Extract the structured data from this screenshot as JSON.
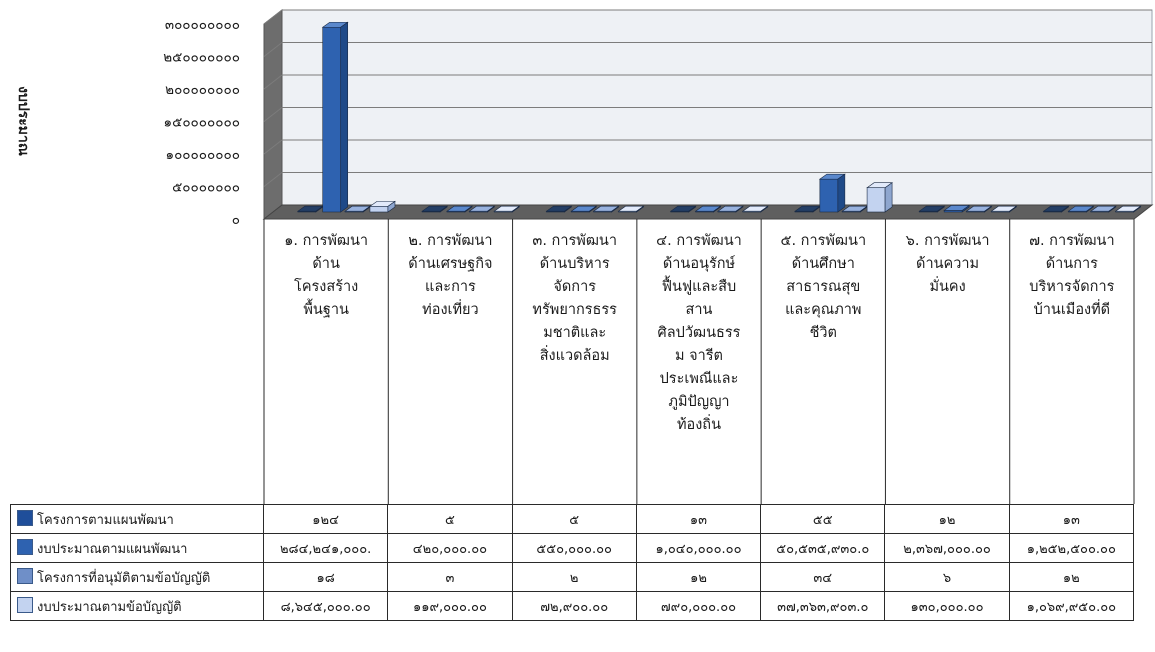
{
  "chart_data": {
    "type": "bar",
    "ylabel": "งบประมาณ",
    "ylim": [
      0,
      300000000
    ],
    "y_ticks": [
      "๐",
      "๕๐๐๐๐๐๐๐",
      "๑๐๐๐๐๐๐๐๐",
      "๑๕๐๐๐๐๐๐๐",
      "๒๐๐๐๐๐๐๐๐",
      "๒๕๐๐๐๐๐๐๐",
      "๓๐๐๐๐๐๐๐๐"
    ],
    "categories": [
      "๑. การพัฒนาด้านโครงสร้างพื้นฐาน",
      "๒. การพัฒนาด้านเศรษฐกิจและการท่องเที่ยว",
      "๓. การพัฒนาด้านบริหารจัดการทรัพยากรธรรมชาติและสิ่งแวดล้อม",
      "๔. การพัฒนาด้านอนุรักษ์ฟื้นฟูและสืบสานศิลปวัฒนธรรม จารีตประเพณีและภูมิปัญญาท้องถิ่น",
      "๕. การพัฒนาด้านศึกษาสาธารณสุขและคุณภาพชีวิต",
      "๖. การพัฒนาด้านความมั่นคง",
      "๗. การพัฒนาด้านการบริหารจัดการบ้านเมืองที่ดี"
    ],
    "series": [
      {
        "name": "โครงการตามแผนพัฒนา",
        "color": "#17365d",
        "values": [
          124,
          5,
          5,
          13,
          55,
          12,
          13
        ],
        "labels": [
          "๑๒๔",
          "๕",
          "๕",
          "๑๓",
          "๕๕",
          "๑๒",
          "๑๓"
        ]
      },
      {
        "name": "งบประมาณตามแผนพัฒนา",
        "color": "#2e62b0",
        "values": [
          284241000,
          420000,
          550000,
          1040000,
          50535930,
          2367000,
          1252500
        ],
        "labels": [
          "๒๘๔,๒๔๑,๐๐๐.",
          "๔๒๐,๐๐๐.๐๐",
          "๕๕๐,๐๐๐.๐๐",
          "๑,๐๔๐,๐๐๐.๐๐",
          "๕๐,๕๓๕,๙๓๐.๐",
          "๒,๓๖๗,๐๐๐.๐๐",
          "๑,๒๕๒,๕๐๐.๐๐"
        ]
      },
      {
        "name": "โครงการที่อนุมัติตามข้อบัญญัติ",
        "color": "#6f8fc8",
        "values": [
          18,
          3,
          2,
          12,
          34,
          6,
          12
        ],
        "labels": [
          "๑๘",
          "๓",
          "๒",
          "๑๒",
          "๓๔",
          "๖",
          "๑๒"
        ]
      },
      {
        "name": "งบประมาณตามข้อบัญญัติ",
        "color": "#c3d3f0",
        "values": [
          8645000,
          119000,
          72900,
          790000,
          37363903,
          130000,
          1069950
        ],
        "labels": [
          "๘,๖๔๕,๐๐๐.๐๐",
          "๑๑๙,๐๐๐.๐๐",
          "๗๒,๙๐๐.๐๐",
          "๗๙๐,๐๐๐.๐๐",
          "๓๗,๓๖๓,๙๐๓.๐",
          "๑๓๐,๐๐๐.๐๐",
          "๑,๐๖๙,๙๕๐.๐๐"
        ]
      }
    ],
    "grid": true,
    "legend": "data-table"
  }
}
